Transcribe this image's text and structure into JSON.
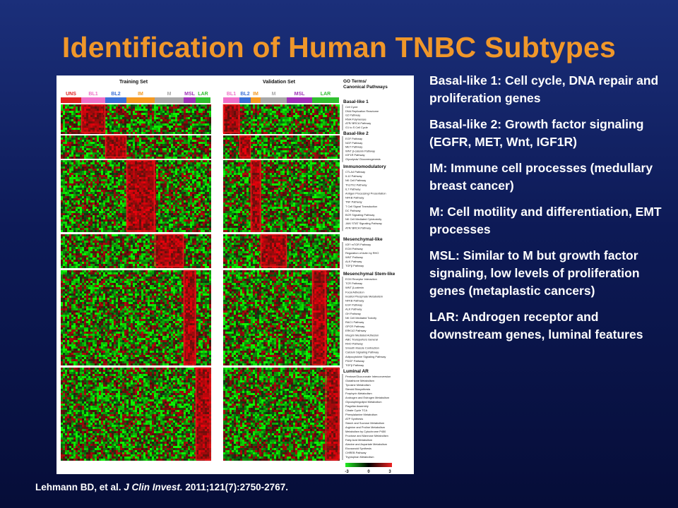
{
  "slide": {
    "title": "Identification of Human TNBC Subtypes",
    "bullets": [
      "Basal-like 1: Cell cycle, DNA repair and proliferation genes",
      "Basal-like 2: Growth factor signaling (EGFR, MET, Wnt, IGF1R)",
      "IM: Immune cell processes (medullary breast cancer)",
      "M: Cell motility and differentiation, EMT processes",
      "MSL: Similar to M but growth factor signaling, low levels of proliferation genes (metaplastic cancers)",
      "LAR: Androgen receptor and downstream genes, luminal features"
    ],
    "citation": {
      "authors": "Lehmann BD, et al.",
      "journal": "J Clin Invest.",
      "details": "2011;121(7):2750-2767."
    }
  },
  "figure": {
    "training_label": "Training Set",
    "validation_label": "Validation Set",
    "training_subtypes": [
      {
        "label": "UNS",
        "color": "#e02020"
      },
      {
        "label": "BL1",
        "color": "#f070c8"
      },
      {
        "label": "BL2",
        "color": "#3a70d8"
      },
      {
        "label": "IM",
        "color": "#f59a20"
      },
      {
        "label": "M",
        "color": "#a8a8a8"
      },
      {
        "label": "MSL",
        "color": "#a030b8"
      },
      {
        "label": "LAR",
        "color": "#30c030"
      }
    ],
    "validation_subtypes": [
      {
        "label": "BL1",
        "color": "#f070c8"
      },
      {
        "label": "BL2",
        "color": "#3a70d8"
      },
      {
        "label": "IM",
        "color": "#f59a20"
      },
      {
        "label": "M",
        "color": "#a8a8a8"
      },
      {
        "label": "MSL",
        "color": "#a030b8"
      },
      {
        "label": "LAR",
        "color": "#30c030"
      }
    ],
    "go_header_line1": "GO Terms/",
    "go_header_line2": "Canonical Pathways",
    "colorbar_ticks": [
      "-3",
      "0",
      "3"
    ],
    "sections": [
      {
        "name": "Basal-like 1",
        "items": [
          "Cell Cycle",
          "DNA Replication Reactome",
          "G2 Pathway",
          "RNA Polymerase",
          "ATR/ BRCA Pathway",
          "G1 to S Cell Cycle"
        ]
      },
      {
        "name": "Basal-like 2",
        "items": [
          "EGF Pathway",
          "NGF Pathway",
          "MET Pathway",
          "WNT β-catenin Pathway",
          "IGF1R Pathway",
          "Glycolysis/ Gluconeogenesis"
        ]
      },
      {
        "name": "Immunomodulatory",
        "items": [
          "CTLA4 Pathway",
          "IL12 Pathway",
          "NK Cell Pathway",
          "Th1/Th2 Pathway",
          "IL7 Pathway",
          "Antigen Processing/ Presentation",
          "NFKB Pathway",
          "TNF Pathway",
          "T Cell Signal Transduction",
          "DC Pathway",
          "BCR Signaling Pathway",
          "NK Cell Mediated Cytotoxicity",
          "JAK/ STAT Signaling Pathway",
          "ATR/ BRCA Pathway"
        ]
      },
      {
        "name": "Mesenchymal-like",
        "items": [
          "IGF/ mTOR Pathway",
          "ECM Pathway",
          "Regulation of Actin by RHO",
          "WNT Pathway",
          "ALK Pathway",
          "TGFβ Pathway"
        ]
      },
      {
        "name": "Mesenchymal Stem-like",
        "items": [
          "ECM Receptor Interaction",
          "TCR Pathway",
          "WNT β-catenin",
          "Focal Adhesion",
          "Inositol Phosphate Metabolism",
          "NFKB Pathway",
          "EGF Pathway",
          "ALK Pathway",
          "GH Pathway",
          "NK Cell Mediated Toxicity",
          "RAC1 Pathway",
          "GPCR Pathway",
          "ERK1/2 Pathway",
          "Integrin Mediated Adhesion",
          "ABC Transporters General",
          "RHO Pathway",
          "Smooth Muscle Contraction",
          "Calcium Signaling Pathway",
          "Adipocytokine Signaling Pathway",
          "PDGF Pathway",
          "TGFβ Pathway"
        ]
      },
      {
        "name": "Luminal AR",
        "items": [
          "Pentose/Glucuronate Interconversion",
          "Glutathione Metabolism",
          "Tyrosine Metabolism",
          "Steroid Biosynthesis",
          "Porphyrin Metabolism",
          "Androgen and Estrogen Metabolism",
          "Glycosphingolipid Metabolism",
          "Flagellar Assembly",
          "Citrate Cycle TCA",
          "Phenylalanine Metabolism",
          "ATP Synthesis",
          "Starch and Sucrose Metabolism",
          "Arginine and Proline Metabolism",
          "Metabolism by Cytochrome P450",
          "Fructose and Mannose Metabolism",
          "Fatty Acid Metabolism",
          "Alanine and Aspartate Metabolism",
          "Eicosanoid Synthesis",
          "CHREB Pathway",
          "Tryptophan Metabolism"
        ]
      }
    ]
  }
}
